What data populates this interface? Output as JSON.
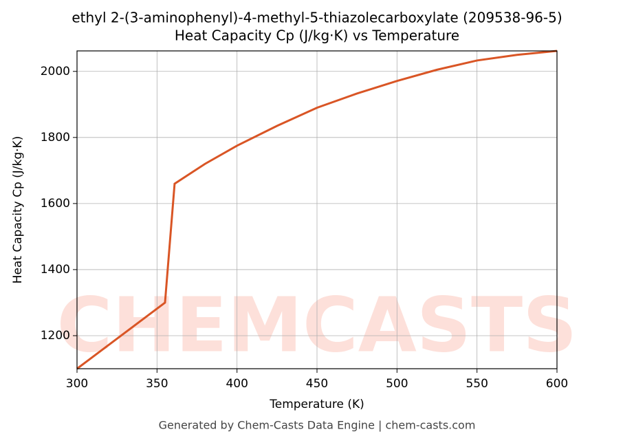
{
  "chart_data": {
    "type": "line",
    "title": "ethyl 2-(3-aminophenyl)-4-methyl-5-thiazolecarboxylate (209538-96-5)",
    "subtitle": "Heat Capacity Cp (J/kg·K) vs Temperature",
    "xlabel": "Temperature (K)",
    "ylabel": "Heat Capacity Cp (J/kg·K)",
    "footer": "Generated by Chem-Casts Data Engine | chem-casts.com",
    "watermark": "CHEMCASTS",
    "x": [
      300,
      355,
      361,
      380,
      400,
      425,
      450,
      475,
      500,
      525,
      550,
      575,
      600
    ],
    "series": [
      {
        "name": "Cp",
        "color": "#d95525",
        "values": [
          1100,
          1300,
          1660,
          1720,
          1775,
          1835,
          1890,
          1933,
          1971,
          2005,
          2033,
          2050,
          2062
        ]
      }
    ],
    "xlim": [
      300,
      600
    ],
    "xticks": [
      300,
      350,
      400,
      450,
      500,
      550,
      600
    ],
    "ylim": [
      1100,
      2062
    ],
    "yticks": [
      1200,
      1400,
      1600,
      1800,
      2000
    ],
    "grid": true
  }
}
